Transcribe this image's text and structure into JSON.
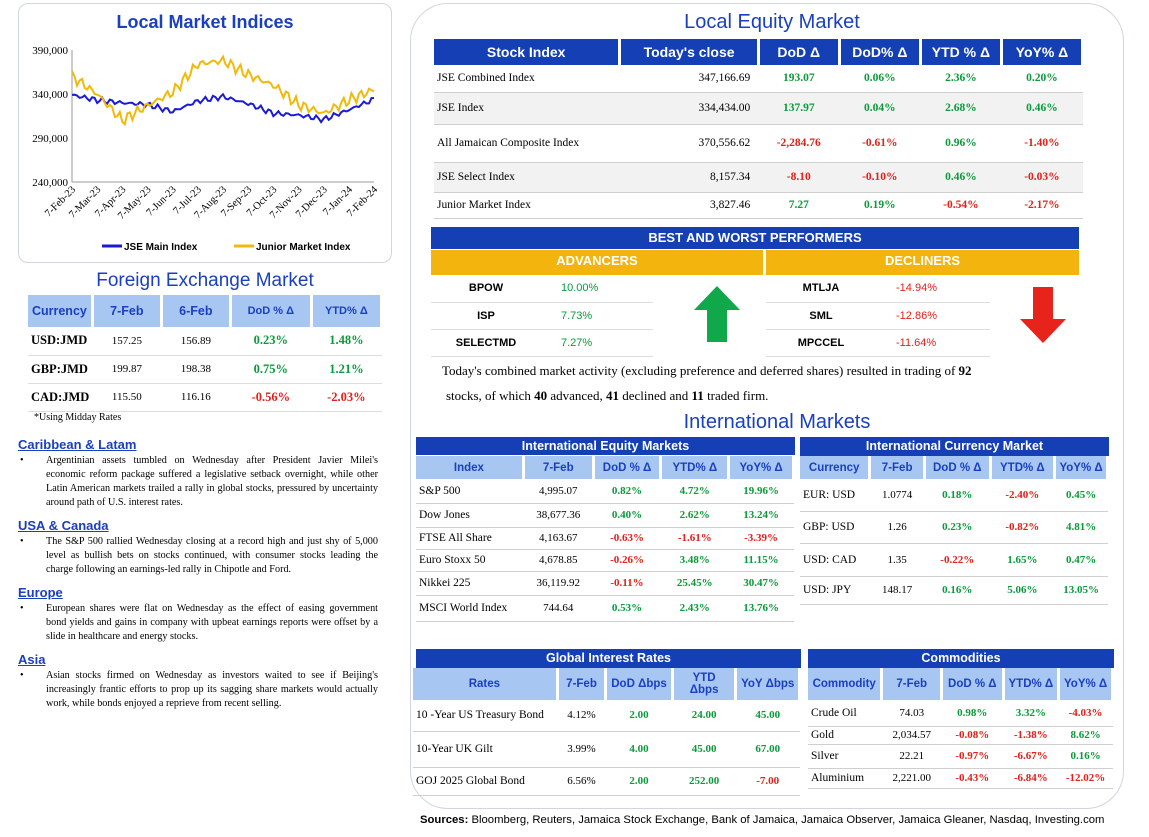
{
  "indices_chart": {
    "title": "Local Market Indices",
    "chart_data": {
      "type": "line",
      "title": "Local Market Indices",
      "categories": [
        "7-Feb-23",
        "7-Mar-23",
        "7-Apr-23",
        "7-May-23",
        "7-Jun-23",
        "7-Jul-23",
        "7-Aug-23",
        "7-Sep-23",
        "7-Oct-23",
        "7-Nov-23",
        "7-Dec-23",
        "7-Jan-24",
        "7-Feb-24"
      ],
      "yticks": [
        "390,000",
        "340,000",
        "290,000",
        "240,000"
      ],
      "ylim": [
        240000,
        390000
      ],
      "series": [
        {
          "name": "JSE Main Index",
          "color": "#1a1ad6",
          "values": [
            339000,
            333000,
            330000,
            328000,
            320000,
            332000,
            337000,
            329000,
            318000,
            316000,
            311000,
            322000,
            334000
          ]
        },
        {
          "name": "Junior Market Index",
          "color": "#f2b90d",
          "values": [
            360000,
            340000,
            310000,
            327000,
            342000,
            374000,
            378000,
            362000,
            350000,
            328000,
            318000,
            333000,
            345000
          ]
        }
      ]
    }
  },
  "fx": {
    "title": "Foreign Exchange Market",
    "headers": [
      "Currency",
      "7-Feb",
      "6-Feb",
      "DoD % Δ",
      "YTD% Δ"
    ],
    "rows": [
      [
        "USD:JMD",
        "157.25",
        "156.89",
        "0.23%",
        "1.48%"
      ],
      [
        "GBP:JMD",
        "199.87",
        "198.38",
        "0.75%",
        "1.21%"
      ],
      [
        "CAD:JMD",
        "115.50",
        "116.16",
        "-0.56%",
        "-2.03%"
      ]
    ],
    "note": "*Using Midday Rates"
  },
  "news": [
    {
      "h": "Caribbean & Latam",
      "t": "Argentinian assets tumbled on Wednesday after President Javier Milei's economic reform package suffered a legislative setback overnight, while other Latin American markets trailed a rally in global stocks, pressured by uncertainty around path of U.S. interest rates."
    },
    {
      "h": "USA & Canada",
      "t": "The S&P 500 rallied Wednesday closing at a record high and just shy of 5,000 level as bullish bets on stocks continued, with consumer stocks leading the charge following an earnings-led rally in Chipotle and Ford."
    },
    {
      "h": "Europe",
      "t": "European shares were flat on Wednesday as the effect of easing government bond yields and gains in company with upbeat earnings reports were offset by a slide in healthcare and energy stocks."
    },
    {
      "h": "Asia",
      "t": "Asian stocks firmed on Wednesday as investors waited to see if Beijing's increasingly frantic efforts to prop up its sagging share markets would actually work, while bonds enjoyed a reprieve from recent selling."
    }
  ],
  "equity": {
    "title": "Local Equity Market",
    "headers": [
      "Stock Index",
      "Today's close",
      "DoD  Δ",
      "DoD% Δ",
      "YTD % Δ",
      "YoY% Δ"
    ],
    "rows": [
      [
        "JSE Combined Index",
        "347,166.69",
        "193.07",
        "0.06%",
        "2.36%",
        "0.20%"
      ],
      [
        "JSE Index",
        "334,434.00",
        "137.97",
        "0.04%",
        "2.68%",
        "0.46%"
      ],
      [
        "All Jamaican Composite Index",
        "370,556.62",
        "-2,284.76",
        "-0.61%",
        "0.96%",
        "-1.40%"
      ],
      [
        "JSE Select Index",
        "8,157.34",
        "-8.10",
        "-0.10%",
        "0.46%",
        "-0.03%"
      ],
      [
        "Junior Market Index",
        "3,827.46",
        "7.27",
        "0.19%",
        "-0.54%",
        "-2.17%"
      ]
    ]
  },
  "performers": {
    "title": "BEST AND WORST PERFORMERS",
    "adv_label": "ADVANCERS",
    "dec_label": "DECLINERS",
    "advancers": [
      [
        "BPOW",
        "10.00%"
      ],
      [
        "ISP",
        "7.73%"
      ],
      [
        "SELECTMD",
        "7.27%"
      ]
    ],
    "decliners": [
      [
        "MTLJA",
        "-14.94%"
      ],
      [
        "SML",
        "-12.86%"
      ],
      [
        "MPCCEL",
        "-11.64%"
      ]
    ]
  },
  "summary": {
    "line1": "Today's combined market activity (excluding preference and deferred shares) resulted in trading of ",
    "n1": "92",
    "line2a": "stocks, of which ",
    "n2": "40",
    "line2b": " advanced, ",
    "n3": "41",
    "line2c": " declined and ",
    "n4": "11",
    "line2d": " traded firm."
  },
  "intl": {
    "title": "International Markets",
    "eq_title": "International Equity Markets",
    "eq_headers": [
      "Index",
      "7-Feb",
      "DoD % Δ",
      "YTD% Δ",
      "YoY% Δ"
    ],
    "eq_rows": [
      [
        "S&P 500",
        "4,995.07",
        "0.82%",
        "4.72%",
        "19.96%"
      ],
      [
        "Dow Jones",
        "38,677.36",
        "0.40%",
        "2.62%",
        "13.24%"
      ],
      [
        "FTSE All Share",
        "4,163.67",
        "-0.63%",
        "-1.61%",
        "-3.39%"
      ],
      [
        "Euro Stoxx 50",
        "4,678.85",
        "-0.26%",
        "3.48%",
        "11.15%"
      ],
      [
        "Nikkei 225",
        "36,119.92",
        "-0.11%",
        "25.45%",
        "30.47%"
      ],
      [
        "MSCI World Index",
        "744.64",
        "0.53%",
        "2.43%",
        "13.76%"
      ]
    ],
    "cur_title": "International Currency Market",
    "cur_headers": [
      "Currency",
      "7-Feb",
      "DoD % Δ",
      "YTD% Δ",
      "YoY% Δ"
    ],
    "cur_rows": [
      [
        "EUR: USD",
        "1.0774",
        "0.18%",
        "-2.40%",
        "0.45%"
      ],
      [
        "GBP: USD",
        "1.26",
        "0.23%",
        "-0.82%",
        "4.81%"
      ],
      [
        "USD: CAD",
        "1.35",
        "-0.22%",
        "1.65%",
        "0.47%"
      ],
      [
        "USD: JPY",
        "148.17",
        "0.16%",
        "5.06%",
        "13.05%"
      ]
    ]
  },
  "rates": {
    "title": "Global Interest Rates",
    "headers": [
      "Rates",
      "7-Feb",
      "DoD Δbps",
      "YTD Δbps",
      "YoY Δbps"
    ],
    "rows": [
      [
        "10 -Year US Treasury Bond",
        "4.12%",
        "2.00",
        "24.00",
        "45.00"
      ],
      [
        "10-Year UK Gilt",
        "3.99%",
        "4.00",
        "45.00",
        "67.00"
      ],
      [
        "GOJ 2025 Global Bond",
        "6.56%",
        "2.00",
        "252.00",
        "-7.00"
      ]
    ]
  },
  "commod": {
    "title": "Commodities",
    "headers": [
      "Commodity",
      "7-Feb",
      "DoD % Δ",
      "YTD% Δ",
      "YoY% Δ"
    ],
    "rows": [
      [
        "Crude Oil",
        "74.03",
        "0.98%",
        "3.32%",
        "-4.03%"
      ],
      [
        "Gold",
        "2,034.57",
        "-0.08%",
        "-1.38%",
        "8.62%"
      ],
      [
        "Silver",
        "22.21",
        "-0.97%",
        "-6.67%",
        "0.16%"
      ],
      [
        "Aluminium",
        "2,221.00",
        "-0.43%",
        "-6.84%",
        "-12.02%"
      ]
    ]
  },
  "sources": {
    "label": "Sources:",
    "text": " Bloomberg, Reuters, Jamaica Stock Exchange, Bank of Jamaica, Jamaica Observer, Jamaica Gleaner, Nasdaq, Investing.com"
  }
}
